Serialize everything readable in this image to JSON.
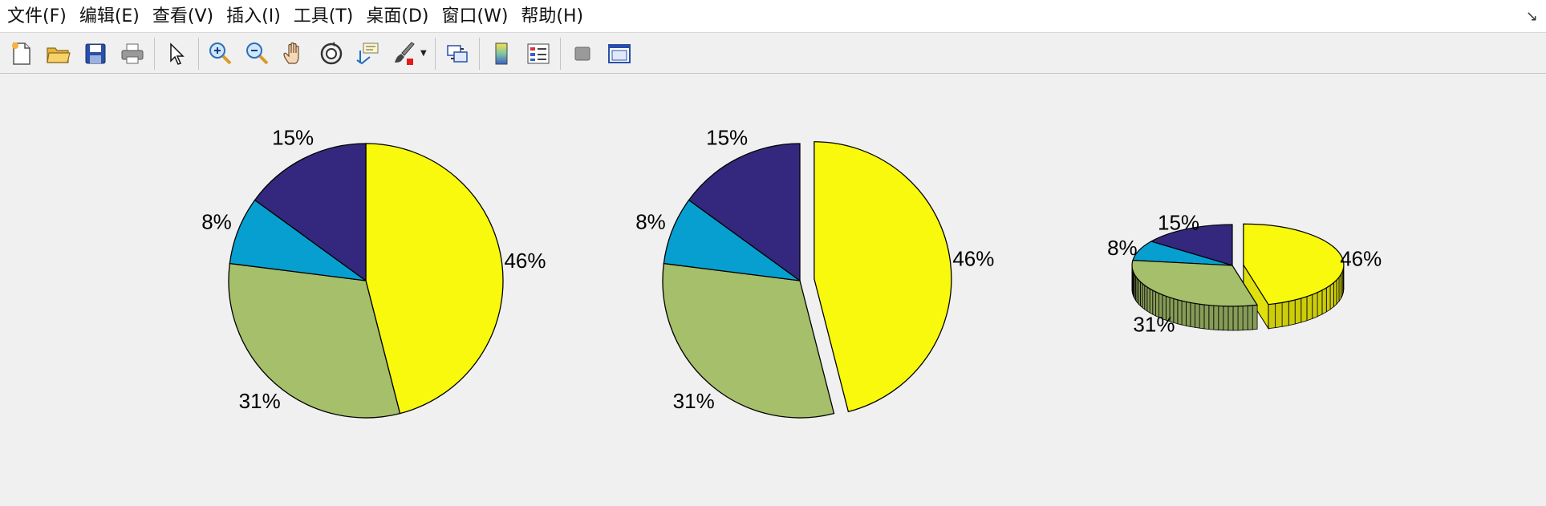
{
  "menubar": {
    "items": [
      "文件(F)",
      "编辑(E)",
      "查看(V)",
      "插入(I)",
      "工具(T)",
      "桌面(D)",
      "窗口(W)",
      "帮助(H)"
    ]
  },
  "toolbar": {
    "buttons": [
      "new-figure-icon",
      "open-file-icon",
      "save-icon",
      "print-icon",
      "pointer-icon",
      "zoom-in-icon",
      "zoom-out-icon",
      "pan-hand-icon",
      "rotate-3d-icon",
      "data-cursor-icon",
      "brush-icon",
      "link-plot-icon",
      "colorbar-icon",
      "legend-icon",
      "hide-plot-tools-icon",
      "show-plot-tools-icon"
    ]
  },
  "chart_data": [
    {
      "type": "pie",
      "labels": [
        "46%",
        "31%",
        "8%",
        "15%"
      ],
      "values": [
        46,
        31,
        8,
        15
      ],
      "colors": [
        "#f9f90e",
        "#a5bf6a",
        "#079fd0",
        "#33287e"
      ],
      "explode": [
        0,
        0,
        0,
        0
      ]
    },
    {
      "type": "pie",
      "labels": [
        "46%",
        "31%",
        "8%",
        "15%"
      ],
      "values": [
        46,
        31,
        8,
        15
      ],
      "colors": [
        "#f9f90e",
        "#a5bf6a",
        "#079fd0",
        "#33287e"
      ],
      "explode": [
        1,
        0,
        0,
        0
      ]
    },
    {
      "type": "pie3",
      "labels": [
        "46%",
        "31%",
        "8%",
        "15%"
      ],
      "values": [
        46,
        31,
        8,
        15
      ],
      "colors": [
        "#f9f90e",
        "#a5bf6a",
        "#079fd0",
        "#33287e"
      ],
      "explode": [
        1,
        0,
        0,
        0
      ]
    }
  ]
}
